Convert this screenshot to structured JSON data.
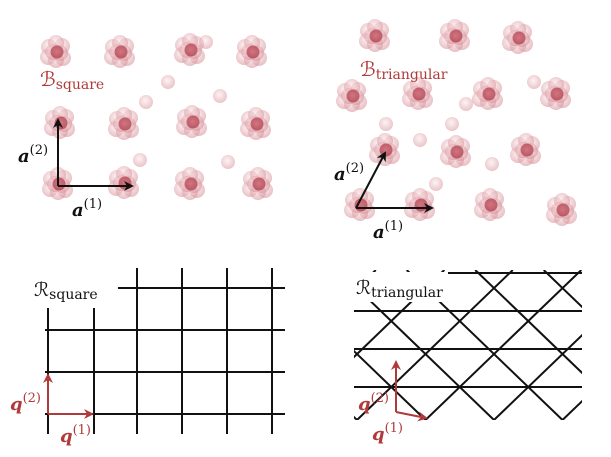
{
  "panels": {
    "square_crystal": {
      "basis_label": "ℬ",
      "basis_subscript": "square",
      "vector_a2": {
        "symbol": "a",
        "superscript": "(2)"
      },
      "vector_a1": {
        "symbol": "a",
        "superscript": "(1)"
      }
    },
    "triangular_crystal": {
      "basis_label": "ℬ",
      "basis_subscript": "triangular",
      "vector_a2": {
        "symbol": "a",
        "superscript": "(2)"
      },
      "vector_a1": {
        "symbol": "a",
        "superscript": "(1)"
      }
    },
    "square_lattice": {
      "lattice_label": "ℛ",
      "lattice_subscript": "square",
      "vector_q2": {
        "symbol": "q",
        "superscript": "(2)"
      },
      "vector_q1": {
        "symbol": "q",
        "superscript": "(1)"
      }
    },
    "triangular_lattice": {
      "lattice_label": "ℛ",
      "lattice_subscript": "triangular",
      "vector_q2": {
        "symbol": "q",
        "superscript": "(2)"
      },
      "vector_q1": {
        "symbol": "q",
        "superscript": "(1)"
      }
    }
  },
  "colors": {
    "atom": "#c96a72",
    "atom_core": "#b24452",
    "basis_label": "#b03a3a",
    "lattice_vector": "#b03a3a",
    "crystal_vector": "#111111",
    "grid": "#111111"
  }
}
